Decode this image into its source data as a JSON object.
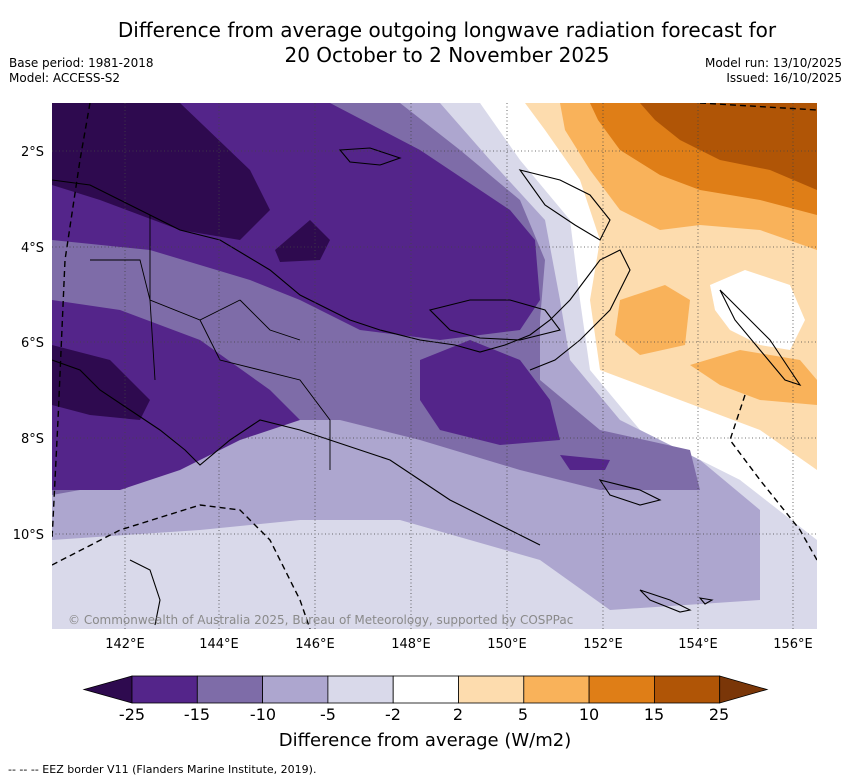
{
  "title_line1": "Difference from average outgoing longwave radiation forecast for",
  "title_line2": "20 October to 2 November 2025",
  "meta_left": {
    "base_period": "Base period: 1981-2018",
    "model": "Model: ACCESS-S2"
  },
  "meta_right": {
    "model_run": "Model run: 13/10/2025",
    "issued": "Issued: 16/10/2025"
  },
  "copyright": "© Commonwealth of Australia 2025, Bureau of Meteorology, supported by COSPPac",
  "x_ticks": [
    "142°E",
    "144°E",
    "146°E",
    "148°E",
    "150°E",
    "152°E",
    "154°E",
    "156°E"
  ],
  "y_ticks": [
    "2°S",
    "4°S",
    "6°S",
    "8°S",
    "10°S"
  ],
  "colorbar": {
    "title": "Difference from average (W/m2)",
    "labels": [
      "-25",
      "-15",
      "-10",
      "-5",
      "-2",
      "2",
      "5",
      "10",
      "15",
      "25"
    ],
    "colors": [
      "#2e0a4f",
      "#54258a",
      "#7e6ca8",
      "#ada6cf",
      "#d9d9ea",
      "#ffffff",
      "#fddcae",
      "#f9b25a",
      "#df7e17",
      "#b05506",
      "#7a3608"
    ]
  },
  "footnote": "--  --  -- EEZ border V11 (Flanders Marine Institute, 2019)."
}
